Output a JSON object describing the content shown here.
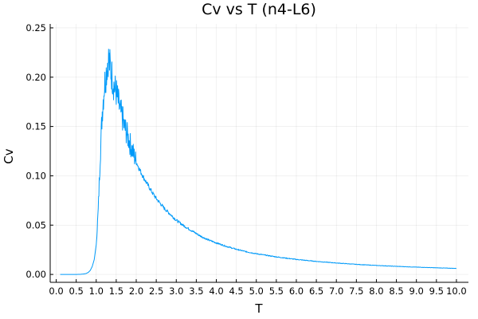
{
  "chart_data": {
    "type": "line",
    "title": "Cv vs T (n4-L6)",
    "xlabel": "T",
    "ylabel": "Cv",
    "xlim": [
      -0.15,
      10.3
    ],
    "ylim": [
      -0.008,
      0.254
    ],
    "grid": true,
    "legend": "none",
    "x_ticks": [
      0.0,
      0.5,
      1.0,
      1.5,
      2.0,
      2.5,
      3.0,
      3.5,
      4.0,
      4.5,
      5.0,
      5.5,
      6.0,
      6.5,
      7.0,
      7.5,
      8.0,
      8.5,
      9.0,
      9.5,
      10.0
    ],
    "x_tick_labels": [
      "0.0",
      "0.5",
      "1.0",
      "1.5",
      "2.0",
      "2.5",
      "3.0",
      "3.5",
      "4.0",
      "4.5",
      "5.0",
      "5.5",
      "6.0",
      "6.5",
      "7.0",
      "7.5",
      "8.0",
      "8.5",
      "9.0",
      "9.5",
      "10.0"
    ],
    "y_ticks": [
      0.0,
      0.05,
      0.1,
      0.15,
      0.2,
      0.25
    ],
    "y_tick_labels": [
      "0.00",
      "0.05",
      "0.10",
      "0.15",
      "0.20",
      "0.25"
    ],
    "series": [
      {
        "color": "#009af9",
        "x": [
          0.1,
          0.2,
          0.3,
          0.4,
          0.5,
          0.6,
          0.7,
          0.75,
          0.8,
          0.85,
          0.9,
          0.95,
          1.0,
          1.05,
          1.1,
          1.15,
          1.2,
          1.25,
          1.3,
          1.35,
          1.4,
          1.45,
          1.5,
          1.55,
          1.6,
          1.65,
          1.7,
          1.75,
          1.8,
          1.85,
          1.9,
          1.95,
          2.0,
          2.1,
          2.2,
          2.3,
          2.4,
          2.5,
          2.6,
          2.7,
          2.8,
          2.9,
          3.0,
          3.2,
          3.4,
          3.6,
          3.8,
          4.0,
          4.25,
          4.5,
          4.75,
          5.0,
          5.5,
          6.0,
          6.5,
          7.0,
          7.5,
          8.0,
          8.5,
          9.0,
          9.5,
          10.0
        ],
        "values": [
          0.0,
          0.0,
          0.0,
          0.0,
          0.0,
          0.0001,
          0.0005,
          0.001,
          0.002,
          0.004,
          0.008,
          0.015,
          0.03,
          0.065,
          0.12,
          0.165,
          0.19,
          0.205,
          0.22,
          0.21,
          0.2,
          0.19,
          0.185,
          0.175,
          0.165,
          0.16,
          0.15,
          0.145,
          0.138,
          0.132,
          0.126,
          0.12,
          0.114,
          0.105,
          0.097,
          0.09,
          0.083,
          0.077,
          0.072,
          0.067,
          0.063,
          0.059,
          0.055,
          0.049,
          0.044,
          0.039,
          0.035,
          0.032,
          0.0285,
          0.0255,
          0.023,
          0.021,
          0.0178,
          0.0152,
          0.0132,
          0.0116,
          0.0102,
          0.0091,
          0.0082,
          0.0074,
          0.0067,
          0.0061
        ]
      }
    ]
  }
}
